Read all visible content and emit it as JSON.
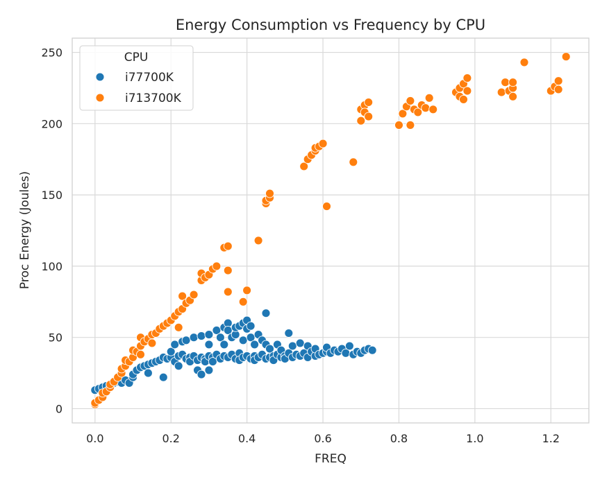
{
  "chart_data": {
    "type": "scatter",
    "title": "Energy Consumption vs Frequency by CPU",
    "xlabel": "FREQ",
    "ylabel": "Proc Energy (Joules)",
    "xlim": [
      -0.06,
      1.3
    ],
    "ylim": [
      -10,
      260
    ],
    "x_ticks": [
      0.0,
      0.2,
      0.4,
      0.6,
      0.8,
      1.0,
      1.2
    ],
    "x_tick_labels": [
      "0.0",
      "0.2",
      "0.4",
      "0.6",
      "0.8",
      "1.0",
      "1.2"
    ],
    "y_ticks": [
      0,
      50,
      100,
      150,
      200,
      250
    ],
    "y_tick_labels": [
      "0",
      "50",
      "100",
      "150",
      "200",
      "250"
    ],
    "grid": true,
    "legend": {
      "title": "CPU",
      "placement": "top-left"
    },
    "series": [
      {
        "name": "i77700K",
        "color": "#1f77b4",
        "points": [
          [
            0.0,
            13
          ],
          [
            0.01,
            14
          ],
          [
            0.02,
            15
          ],
          [
            0.03,
            16
          ],
          [
            0.04,
            17
          ],
          [
            0.05,
            18
          ],
          [
            0.06,
            19
          ],
          [
            0.07,
            18
          ],
          [
            0.08,
            20
          ],
          [
            0.09,
            18
          ],
          [
            0.1,
            22
          ],
          [
            0.1,
            24
          ],
          [
            0.11,
            27
          ],
          [
            0.12,
            29
          ],
          [
            0.13,
            30
          ],
          [
            0.14,
            31
          ],
          [
            0.14,
            25
          ],
          [
            0.15,
            32
          ],
          [
            0.16,
            33
          ],
          [
            0.17,
            34
          ],
          [
            0.18,
            22
          ],
          [
            0.18,
            36
          ],
          [
            0.19,
            35
          ],
          [
            0.2,
            36
          ],
          [
            0.2,
            40
          ],
          [
            0.21,
            45
          ],
          [
            0.21,
            33
          ],
          [
            0.22,
            37
          ],
          [
            0.22,
            30
          ],
          [
            0.23,
            38
          ],
          [
            0.23,
            47
          ],
          [
            0.24,
            35
          ],
          [
            0.24,
            48
          ],
          [
            0.25,
            36
          ],
          [
            0.25,
            33
          ],
          [
            0.26,
            37
          ],
          [
            0.26,
            50
          ],
          [
            0.27,
            34
          ],
          [
            0.27,
            27
          ],
          [
            0.28,
            36
          ],
          [
            0.28,
            24
          ],
          [
            0.28,
            51
          ],
          [
            0.29,
            35
          ],
          [
            0.29,
            33
          ],
          [
            0.3,
            37
          ],
          [
            0.3,
            52
          ],
          [
            0.3,
            27
          ],
          [
            0.3,
            45
          ],
          [
            0.31,
            36
          ],
          [
            0.31,
            33
          ],
          [
            0.32,
            38
          ],
          [
            0.32,
            55
          ],
          [
            0.33,
            35
          ],
          [
            0.33,
            50
          ],
          [
            0.34,
            37
          ],
          [
            0.34,
            57
          ],
          [
            0.34,
            45
          ],
          [
            0.35,
            36
          ],
          [
            0.35,
            60
          ],
          [
            0.35,
            55
          ],
          [
            0.36,
            38
          ],
          [
            0.36,
            50
          ],
          [
            0.37,
            35
          ],
          [
            0.37,
            52
          ],
          [
            0.37,
            57
          ],
          [
            0.38,
            39
          ],
          [
            0.38,
            58
          ],
          [
            0.38,
            34
          ],
          [
            0.39,
            36
          ],
          [
            0.39,
            60
          ],
          [
            0.39,
            48
          ],
          [
            0.4,
            37
          ],
          [
            0.4,
            62
          ],
          [
            0.4,
            56
          ],
          [
            0.41,
            35
          ],
          [
            0.41,
            50
          ],
          [
            0.41,
            58
          ],
          [
            0.42,
            37
          ],
          [
            0.42,
            45
          ],
          [
            0.42,
            34
          ],
          [
            0.43,
            36
          ],
          [
            0.43,
            52
          ],
          [
            0.44,
            38
          ],
          [
            0.44,
            48
          ],
          [
            0.45,
            35
          ],
          [
            0.45,
            67
          ],
          [
            0.45,
            45
          ],
          [
            0.46,
            36
          ],
          [
            0.46,
            42
          ],
          [
            0.47,
            37
          ],
          [
            0.47,
            34
          ],
          [
            0.48,
            38
          ],
          [
            0.48,
            45
          ],
          [
            0.49,
            36
          ],
          [
            0.49,
            41
          ],
          [
            0.5,
            37
          ],
          [
            0.5,
            35
          ],
          [
            0.51,
            39
          ],
          [
            0.51,
            53
          ],
          [
            0.52,
            36
          ],
          [
            0.52,
            44
          ],
          [
            0.53,
            38
          ],
          [
            0.54,
            37
          ],
          [
            0.54,
            46
          ],
          [
            0.55,
            39
          ],
          [
            0.56,
            36
          ],
          [
            0.56,
            44
          ],
          [
            0.57,
            40
          ],
          [
            0.58,
            37
          ],
          [
            0.58,
            42
          ],
          [
            0.59,
            38
          ],
          [
            0.6,
            39
          ],
          [
            0.61,
            40
          ],
          [
            0.61,
            43
          ],
          [
            0.62,
            39
          ],
          [
            0.63,
            41
          ],
          [
            0.64,
            40
          ],
          [
            0.65,
            42
          ],
          [
            0.66,
            39
          ],
          [
            0.67,
            44
          ],
          [
            0.68,
            38
          ],
          [
            0.69,
            40
          ],
          [
            0.7,
            39
          ],
          [
            0.71,
            41
          ],
          [
            0.72,
            42
          ],
          [
            0.73,
            41
          ]
        ]
      },
      {
        "name": "i713700K",
        "color": "#ff7f0e",
        "points": [
          [
            0.0,
            3
          ],
          [
            0.0,
            4
          ],
          [
            0.01,
            6
          ],
          [
            0.02,
            8
          ],
          [
            0.02,
            11
          ],
          [
            0.03,
            12
          ],
          [
            0.04,
            15
          ],
          [
            0.04,
            17
          ],
          [
            0.05,
            19
          ],
          [
            0.06,
            22
          ],
          [
            0.07,
            25
          ],
          [
            0.07,
            28
          ],
          [
            0.08,
            30
          ],
          [
            0.08,
            34
          ],
          [
            0.09,
            33
          ],
          [
            0.1,
            36
          ],
          [
            0.1,
            41
          ],
          [
            0.11,
            40
          ],
          [
            0.12,
            38
          ],
          [
            0.12,
            44
          ],
          [
            0.12,
            50
          ],
          [
            0.13,
            47
          ],
          [
            0.14,
            49
          ],
          [
            0.15,
            46
          ],
          [
            0.15,
            52
          ],
          [
            0.16,
            53
          ],
          [
            0.17,
            56
          ],
          [
            0.18,
            58
          ],
          [
            0.19,
            60
          ],
          [
            0.2,
            62
          ],
          [
            0.21,
            65
          ],
          [
            0.22,
            68
          ],
          [
            0.22,
            57
          ],
          [
            0.23,
            70
          ],
          [
            0.23,
            79
          ],
          [
            0.24,
            74
          ],
          [
            0.25,
            76
          ],
          [
            0.26,
            80
          ],
          [
            0.28,
            90
          ],
          [
            0.28,
            95
          ],
          [
            0.29,
            92
          ],
          [
            0.3,
            94
          ],
          [
            0.31,
            98
          ],
          [
            0.32,
            100
          ],
          [
            0.34,
            113
          ],
          [
            0.35,
            114
          ],
          [
            0.35,
            97
          ],
          [
            0.35,
            82
          ],
          [
            0.39,
            75
          ],
          [
            0.4,
            83
          ],
          [
            0.43,
            118
          ],
          [
            0.45,
            144
          ],
          [
            0.45,
            146
          ],
          [
            0.46,
            148
          ],
          [
            0.46,
            151
          ],
          [
            0.55,
            170
          ],
          [
            0.56,
            175
          ],
          [
            0.57,
            178
          ],
          [
            0.58,
            181
          ],
          [
            0.58,
            183
          ],
          [
            0.59,
            184
          ],
          [
            0.6,
            186
          ],
          [
            0.61,
            142
          ],
          [
            0.68,
            173
          ],
          [
            0.7,
            202
          ],
          [
            0.7,
            210
          ],
          [
            0.71,
            213
          ],
          [
            0.71,
            208
          ],
          [
            0.72,
            215
          ],
          [
            0.72,
            205
          ],
          [
            0.8,
            199
          ],
          [
            0.81,
            207
          ],
          [
            0.82,
            212
          ],
          [
            0.83,
            199
          ],
          [
            0.83,
            216
          ],
          [
            0.84,
            210
          ],
          [
            0.85,
            208
          ],
          [
            0.86,
            213
          ],
          [
            0.87,
            211
          ],
          [
            0.88,
            218
          ],
          [
            0.89,
            210
          ],
          [
            0.95,
            222
          ],
          [
            0.96,
            219
          ],
          [
            0.96,
            225
          ],
          [
            0.97,
            217
          ],
          [
            0.97,
            228
          ],
          [
            0.98,
            223
          ],
          [
            0.98,
            232
          ],
          [
            1.07,
            222
          ],
          [
            1.08,
            229
          ],
          [
            1.09,
            223
          ],
          [
            1.1,
            219
          ],
          [
            1.1,
            225
          ],
          [
            1.1,
            229
          ],
          [
            1.13,
            243
          ],
          [
            1.2,
            223
          ],
          [
            1.21,
            226
          ],
          [
            1.22,
            230
          ],
          [
            1.22,
            224
          ],
          [
            1.24,
            247
          ]
        ]
      }
    ]
  }
}
